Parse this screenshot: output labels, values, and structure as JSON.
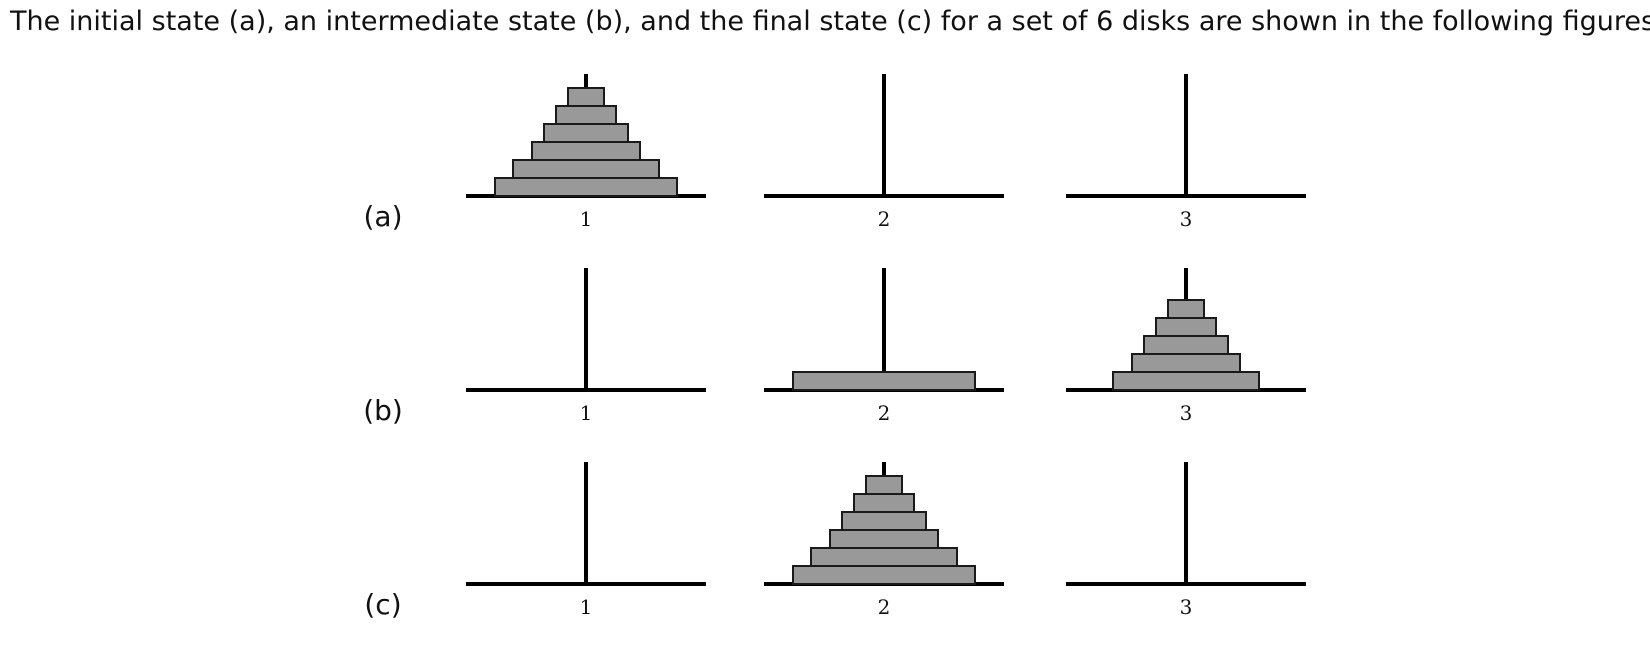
{
  "intro_text": "The initial state (a), an intermediate state (b), and the final state (c) for a set of 6 disks are shown in the following figures:",
  "peg_labels": [
    "1",
    "2",
    "3"
  ],
  "disk_count": 6,
  "colors": {
    "disk_fill": "#999999",
    "disk_stroke": "#1a1a1a",
    "rod": "#000000"
  },
  "states": [
    {
      "label": "(a)",
      "pegs": [
        [
          6,
          5,
          4,
          3,
          2,
          1
        ],
        [],
        []
      ]
    },
    {
      "label": "(b)",
      "pegs": [
        [],
        [
          6
        ],
        [
          5,
          4,
          3,
          2,
          1
        ]
      ]
    },
    {
      "label": "(c)",
      "pegs": [
        [],
        [
          6,
          5,
          4,
          3,
          2,
          1
        ],
        []
      ]
    }
  ]
}
